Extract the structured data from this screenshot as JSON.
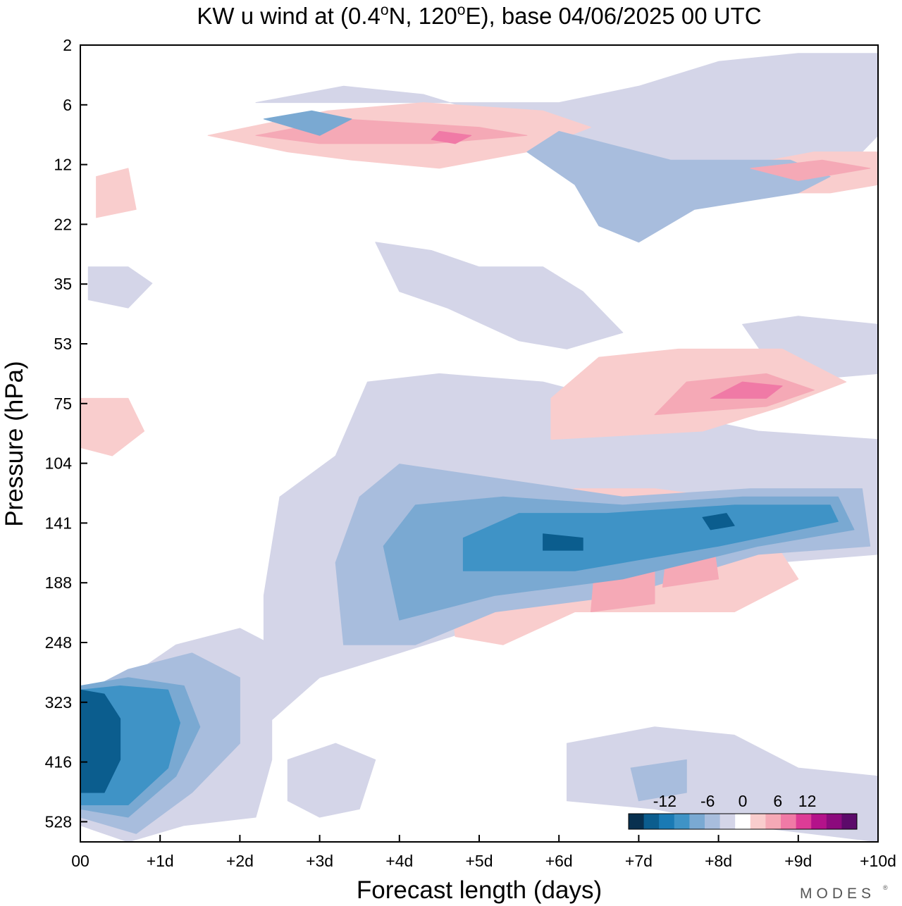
{
  "chart_data": {
    "type": "heatmap",
    "title": "KW u wind at (0.4°N, 120°E),  base 04/06/2025  00 UTC",
    "title_parts": {
      "prefix": "KW u wind at (0.4",
      "deg": "o",
      "mid": "N, 120",
      "suffix": "E),  base 04/06/2025  00 UTC"
    },
    "xlabel": "Forecast length (days)",
    "ylabel": "Pressure (hPa)",
    "x_ticks": [
      "00",
      "+1d",
      "+2d",
      "+3d",
      "+4d",
      "+5d",
      "+6d",
      "+7d",
      "+8d",
      "+9d",
      "+10d"
    ],
    "y_ticks": [
      "2",
      "6",
      "12",
      "22",
      "35",
      "53",
      "75",
      "104",
      "141",
      "188",
      "248",
      "323",
      "416",
      "528"
    ],
    "xlim": [
      0,
      10
    ],
    "colorbar": {
      "labels": [
        "-12",
        "-6",
        "0",
        "6",
        "12"
      ],
      "colors": [
        "#08304f",
        "#0b5d8e",
        "#1a7ab4",
        "#3f93c6",
        "#7aa9d2",
        "#a8bddd",
        "#d4d5e8",
        "#ffffff",
        "#f9cdcd",
        "#f5a9b6",
        "#f07aa6",
        "#dd3c96",
        "#b4128a",
        "#8c0a7d",
        "#5c0a6a"
      ]
    },
    "palette": {
      "v-11": "#0b5d8e",
      "v-9": "#1a7ab4",
      "v-7": "#3f93c6",
      "v-5": "#7aa9d2",
      "v-3": "#a8bddd",
      "v-1": "#d4d5e8",
      "v1": "#f9cdcd",
      "v3": "#f5a9b6",
      "v5": "#f07aa6",
      "v7": "#dd3c96"
    },
    "features": [
      {
        "name": "lower-negative-region",
        "value": -1,
        "points": [
          [
            0,
            0.2
          ],
          [
            0.6,
            -0.1
          ],
          [
            1.3,
            0.2
          ],
          [
            2.2,
            0.3
          ],
          [
            2.4,
            1.0
          ],
          [
            2.4,
            2.4
          ],
          [
            2.0,
            2.6
          ],
          [
            1.2,
            2.4
          ],
          [
            0.6,
            2.0
          ],
          [
            0,
            1.4
          ]
        ]
      },
      {
        "name": "lower-negative-level2",
        "value": -3,
        "points": [
          [
            0,
            0.3
          ],
          [
            0.7,
            0.1
          ],
          [
            1.4,
            0.6
          ],
          [
            2.0,
            1.2
          ],
          [
            2.0,
            2.0
          ],
          [
            1.4,
            2.3
          ],
          [
            0.6,
            2.1
          ],
          [
            0,
            1.8
          ]
        ]
      },
      {
        "name": "lower-negative-level3",
        "value": -5,
        "points": [
          [
            0,
            0.4
          ],
          [
            0.6,
            0.3
          ],
          [
            1.2,
            0.8
          ],
          [
            1.5,
            1.4
          ],
          [
            1.3,
            1.9
          ],
          [
            0.6,
            2.0
          ],
          [
            0,
            1.9
          ]
        ]
      },
      {
        "name": "lower-negative-level4",
        "value": -7,
        "points": [
          [
            0,
            0.45
          ],
          [
            0.6,
            0.45
          ],
          [
            1.1,
            0.9
          ],
          [
            1.25,
            1.45
          ],
          [
            1.1,
            1.85
          ],
          [
            0.5,
            1.9
          ],
          [
            0,
            1.85
          ]
        ]
      },
      {
        "name": "lower-negative-core",
        "value": -11,
        "points": [
          [
            0,
            0.6
          ],
          [
            0.3,
            0.6
          ],
          [
            0.5,
            1.0
          ],
          [
            0.5,
            1.5
          ],
          [
            0.3,
            1.8
          ],
          [
            0,
            1.85
          ]
        ]
      },
      {
        "name": "upper-negative-band",
        "value": -1,
        "points": [
          [
            2.3,
            1.4
          ],
          [
            3.0,
            2.0
          ],
          [
            4.0,
            2.3
          ],
          [
            5.3,
            2.7
          ],
          [
            7.0,
            2.9
          ],
          [
            8.7,
            3.4
          ],
          [
            10,
            3.5
          ],
          [
            10,
            4.9
          ],
          [
            8.5,
            5.0
          ],
          [
            7.0,
            5.3
          ],
          [
            5.8,
            5.6
          ],
          [
            4.5,
            5.7
          ],
          [
            3.6,
            5.6
          ],
          [
            3.2,
            4.7
          ],
          [
            2.5,
            4.2
          ],
          [
            2.3,
            3.0
          ]
        ]
      },
      {
        "name": "upper-negative-level2",
        "value": -3,
        "points": [
          [
            3.3,
            2.4
          ],
          [
            4.2,
            2.4
          ],
          [
            5.2,
            2.8
          ],
          [
            6.8,
            3.0
          ],
          [
            8.5,
            3.5
          ],
          [
            9.9,
            3.6
          ],
          [
            9.8,
            4.3
          ],
          [
            8.4,
            4.3
          ],
          [
            6.8,
            4.2
          ],
          [
            5.4,
            4.4
          ],
          [
            4.0,
            4.6
          ],
          [
            3.5,
            4.2
          ],
          [
            3.2,
            3.4
          ]
        ]
      },
      {
        "name": "upper-negative-level3",
        "value": -5,
        "points": [
          [
            4.0,
            2.7
          ],
          [
            5.2,
            3.0
          ],
          [
            6.8,
            3.2
          ],
          [
            8.5,
            3.6
          ],
          [
            9.7,
            3.8
          ],
          [
            9.5,
            4.2
          ],
          [
            8.3,
            4.2
          ],
          [
            6.8,
            4.1
          ],
          [
            5.3,
            4.2
          ],
          [
            4.2,
            4.1
          ],
          [
            3.8,
            3.6
          ]
        ]
      },
      {
        "name": "upper-negative-level4",
        "value": -7,
        "points": [
          [
            4.8,
            3.3
          ],
          [
            6.2,
            3.3
          ],
          [
            8.0,
            3.6
          ],
          [
            9.5,
            3.9
          ],
          [
            9.4,
            4.1
          ],
          [
            8.2,
            4.1
          ],
          [
            6.6,
            4.0
          ],
          [
            5.5,
            4.0
          ],
          [
            4.8,
            3.7
          ]
        ]
      },
      {
        "name": "upper-negative-core",
        "value": -11,
        "points": [
          [
            5.8,
            3.55
          ],
          [
            6.3,
            3.55
          ],
          [
            6.3,
            3.7
          ],
          [
            5.8,
            3.75
          ]
        ]
      },
      {
        "name": "upper-negative-core-2",
        "value": -11,
        "points": [
          [
            7.9,
            3.8
          ],
          [
            8.2,
            3.85
          ],
          [
            8.1,
            4.0
          ],
          [
            7.8,
            3.95
          ]
        ]
      },
      {
        "name": "positive-lower-band",
        "value": 1,
        "points": [
          [
            4.7,
            2.5
          ],
          [
            5.3,
            2.4
          ],
          [
            6.2,
            2.8
          ],
          [
            7.2,
            2.8
          ],
          [
            8.2,
            2.8
          ],
          [
            9.0,
            3.2
          ],
          [
            8.6,
            3.8
          ],
          [
            8.0,
            4.2
          ],
          [
            7.2,
            4.3
          ],
          [
            6.2,
            4.3
          ],
          [
            5.2,
            4.0
          ],
          [
            4.6,
            3.5
          ]
        ]
      },
      {
        "name": "positive-lower-level2",
        "value": 3,
        "points": [
          [
            5.5,
            3.1
          ],
          [
            6.3,
            3.2
          ],
          [
            6.3,
            3.9
          ],
          [
            5.8,
            3.9
          ]
        ]
      },
      {
        "name": "positive-lower-level2-b",
        "value": 3,
        "points": [
          [
            6.4,
            2.8
          ],
          [
            7.2,
            2.9
          ],
          [
            7.2,
            3.9
          ],
          [
            6.5,
            3.9
          ]
        ]
      },
      {
        "name": "positive-lower-level2-c",
        "value": 3,
        "points": [
          [
            7.3,
            3.1
          ],
          [
            8.0,
            3.2
          ],
          [
            7.9,
            3.9
          ],
          [
            7.4,
            3.9
          ]
        ]
      },
      {
        "name": "positive-upper-band",
        "value": 1,
        "points": [
          [
            5.9,
            4.9
          ],
          [
            7.8,
            5.0
          ],
          [
            8.8,
            5.3
          ],
          [
            9.6,
            5.6
          ],
          [
            8.8,
            6.0
          ],
          [
            7.5,
            6.0
          ],
          [
            6.5,
            5.9
          ],
          [
            5.9,
            5.4
          ]
        ]
      },
      {
        "name": "positive-upper-level2",
        "value": 3,
        "points": [
          [
            7.2,
            5.2
          ],
          [
            8.6,
            5.3
          ],
          [
            9.2,
            5.5
          ],
          [
            8.6,
            5.7
          ],
          [
            7.6,
            5.6
          ]
        ]
      },
      {
        "name": "positive-upper-level3",
        "value": 5,
        "points": [
          [
            7.9,
            5.4
          ],
          [
            8.6,
            5.4
          ],
          [
            8.8,
            5.55
          ],
          [
            8.3,
            5.6
          ]
        ]
      },
      {
        "name": "stratosphere-positive-1",
        "value": 1,
        "points": [
          [
            1.6,
            8.6
          ],
          [
            2.6,
            8.4
          ],
          [
            3.4,
            8.3
          ],
          [
            4.5,
            8.2
          ],
          [
            5.6,
            8.4
          ],
          [
            6.4,
            8.7
          ],
          [
            5.8,
            8.9
          ],
          [
            4.3,
            9.0
          ],
          [
            3.1,
            8.9
          ]
        ]
      },
      {
        "name": "stratosphere-positive-2",
        "value": 3,
        "points": [
          [
            2.2,
            8.6
          ],
          [
            3.0,
            8.5
          ],
          [
            4.4,
            8.5
          ],
          [
            5.6,
            8.6
          ],
          [
            5.0,
            8.7
          ],
          [
            3.3,
            8.8
          ]
        ]
      },
      {
        "name": "stratosphere-positive-3",
        "value": 5,
        "points": [
          [
            4.4,
            8.55
          ],
          [
            4.7,
            8.5
          ],
          [
            4.9,
            8.6
          ],
          [
            4.5,
            8.65
          ]
        ]
      },
      {
        "name": "stratosphere-negative-1",
        "value": -1,
        "points": [
          [
            2.2,
            9.0
          ],
          [
            3.3,
            9.2
          ],
          [
            4.3,
            9.1
          ],
          [
            4.8,
            8.95
          ],
          [
            5.1,
            8.9
          ],
          [
            6.0,
            8.6
          ],
          [
            6.8,
            8.3
          ],
          [
            7.5,
            8.2
          ],
          [
            9.5,
            8.1
          ],
          [
            10,
            8.6
          ],
          [
            10,
            9.6
          ],
          [
            9.0,
            9.6
          ],
          [
            8.0,
            9.5
          ],
          [
            7.0,
            9.2
          ],
          [
            6.0,
            9.0
          ]
        ]
      },
      {
        "name": "stratosphere-negative-2",
        "value": -3,
        "points": [
          [
            6.0,
            8.65
          ],
          [
            6.8,
            8.45
          ],
          [
            7.4,
            8.3
          ],
          [
            8.9,
            8.3
          ],
          [
            9.4,
            8.1
          ],
          [
            9.0,
            7.9
          ],
          [
            7.7,
            7.7
          ],
          [
            7.0,
            7.3
          ],
          [
            6.5,
            7.5
          ],
          [
            6.2,
            8.0
          ],
          [
            5.6,
            8.4
          ]
        ]
      },
      {
        "name": "stratosphere-negative-3",
        "value": -5,
        "points": [
          [
            2.3,
            8.8
          ],
          [
            2.9,
            8.9
          ],
          [
            3.4,
            8.8
          ],
          [
            3.0,
            8.6
          ]
        ]
      },
      {
        "name": "mid-negative-1",
        "value": -1,
        "points": [
          [
            3.7,
            7.3
          ],
          [
            4.4,
            7.2
          ],
          [
            5.0,
            7.0
          ],
          [
            5.8,
            7.0
          ],
          [
            6.3,
            6.7
          ],
          [
            6.8,
            6.2
          ],
          [
            6.1,
            6.0
          ],
          [
            5.5,
            6.1
          ],
          [
            4.6,
            6.5
          ],
          [
            4.0,
            6.7
          ]
        ]
      },
      {
        "name": "mid-negative-2",
        "value": -1,
        "points": [
          [
            8.8,
            5.6
          ],
          [
            10,
            5.7
          ],
          [
            10,
            6.3
          ],
          [
            9.0,
            6.4
          ],
          [
            8.3,
            6.3
          ]
        ]
      },
      {
        "name": "top-positive-right",
        "value": 1,
        "points": [
          [
            8.1,
            8.2
          ],
          [
            9.2,
            8.4
          ],
          [
            10,
            8.4
          ],
          [
            10,
            8.0
          ],
          [
            9.4,
            7.9
          ],
          [
            8.1,
            7.9
          ]
        ]
      },
      {
        "name": "top-positive-right-2",
        "value": 3,
        "points": [
          [
            8.4,
            8.2
          ],
          [
            9.3,
            8.3
          ],
          [
            9.9,
            8.2
          ],
          [
            9.0,
            8.05
          ]
        ]
      },
      {
        "name": "top-negative-left",
        "value": -1,
        "points": [
          [
            0.1,
            6.6
          ],
          [
            0.6,
            6.5
          ],
          [
            0.9,
            6.8
          ],
          [
            0.6,
            7.0
          ],
          [
            0.1,
            7.0
          ]
        ]
      },
      {
        "name": "left-positive-small",
        "value": 1,
        "points": [
          [
            0,
            4.8
          ],
          [
            0.4,
            4.7
          ],
          [
            0.8,
            5.0
          ],
          [
            0.6,
            5.4
          ],
          [
            0,
            5.4
          ]
        ]
      },
      {
        "name": "left-positive-small-2",
        "value": 1,
        "points": [
          [
            0.2,
            7.6
          ],
          [
            0.7,
            7.7
          ],
          [
            0.6,
            8.2
          ],
          [
            0.2,
            8.1
          ]
        ]
      },
      {
        "name": "surface-negative-mid",
        "value": -1,
        "points": [
          [
            2.6,
            1.0
          ],
          [
            3.2,
            1.2
          ],
          [
            3.7,
            1.0
          ],
          [
            3.5,
            0.4
          ],
          [
            3.0,
            0.3
          ],
          [
            2.6,
            0.5
          ]
        ]
      },
      {
        "name": "surface-negative-right",
        "value": -1,
        "points": [
          [
            6.1,
            1.2
          ],
          [
            7.2,
            1.4
          ],
          [
            8.2,
            1.3
          ],
          [
            9.0,
            0.9
          ],
          [
            10,
            0.8
          ],
          [
            10,
            0.0
          ],
          [
            8.3,
            0.2
          ],
          [
            7.2,
            0.4
          ],
          [
            6.1,
            0.5
          ]
        ]
      },
      {
        "name": "surface-negative-right-2",
        "value": -3,
        "points": [
          [
            6.9,
            0.9
          ],
          [
            7.6,
            1.0
          ],
          [
            7.6,
            0.6
          ],
          [
            7.0,
            0.5
          ]
        ]
      }
    ]
  },
  "branding": {
    "logo": "MODES"
  }
}
